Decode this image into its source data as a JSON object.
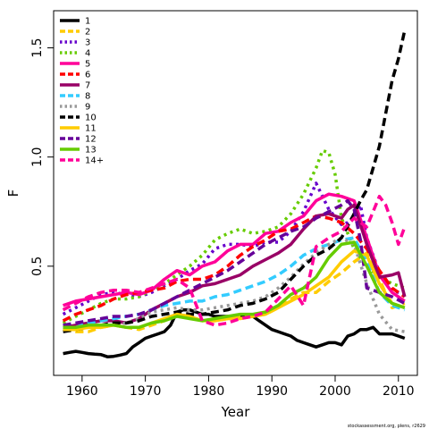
{
  "chart_data": {
    "type": "line",
    "xlabel": "Year",
    "ylabel": "F",
    "xlim": [
      1955.5,
      2013
    ],
    "ylim": [
      0.0,
      1.67
    ],
    "xticks": [
      1960,
      1970,
      1980,
      1990,
      2000,
      2010
    ],
    "yticks": [
      0.5,
      1.0,
      1.5
    ],
    "ytick_labels": [
      "0.5",
      "1.0",
      "1.5"
    ],
    "legend_position": "top-left",
    "grid": false,
    "credit": "stockassessment.org, plens, r2629",
    "series": [
      {
        "name": "1",
        "color": "#000000",
        "dash": "solid",
        "x": [
          1957,
          1958,
          1959,
          1960,
          1961,
          1962,
          1963,
          1964,
          1965,
          1966,
          1967,
          1968,
          1969,
          1970,
          1971,
          1972,
          1973,
          1974,
          1975,
          1976,
          1977,
          1978,
          1979,
          1980,
          1981,
          1982,
          1983,
          1984,
          1985,
          1986,
          1987,
          1988,
          1989,
          1990,
          1991,
          1992,
          1993,
          1994,
          1995,
          1996,
          1997,
          1998,
          1999,
          2000,
          2001,
          2002,
          2003,
          2004,
          2005,
          2006,
          2007,
          2008,
          2009,
          2010,
          2011
        ],
        "y": [
          0.1,
          0.105,
          0.11,
          0.105,
          0.1,
          0.097,
          0.095,
          0.085,
          0.087,
          0.093,
          0.1,
          0.13,
          0.15,
          0.17,
          0.18,
          0.19,
          0.2,
          0.23,
          0.29,
          0.3,
          0.3,
          0.29,
          0.28,
          0.28,
          0.27,
          0.27,
          0.27,
          0.27,
          0.27,
          0.27,
          0.27,
          0.25,
          0.23,
          0.21,
          0.2,
          0.19,
          0.18,
          0.16,
          0.15,
          0.14,
          0.13,
          0.14,
          0.15,
          0.15,
          0.14,
          0.18,
          0.19,
          0.21,
          0.21,
          0.22,
          0.19,
          0.19,
          0.19,
          0.18,
          0.17
        ]
      },
      {
        "name": "2",
        "color": "#FFCC00",
        "dash": "dashed",
        "x": [
          1957,
          1959,
          1961,
          1963,
          1965,
          1967,
          1969,
          1971,
          1973,
          1975,
          1977,
          1979,
          1981,
          1983,
          1985,
          1987,
          1989,
          1991,
          1993,
          1995,
          1997,
          1999,
          2001,
          2003,
          2005,
          2007,
          2009,
          2011
        ],
        "y": [
          0.21,
          0.2,
          0.2,
          0.22,
          0.23,
          0.22,
          0.21,
          0.23,
          0.25,
          0.28,
          0.27,
          0.25,
          0.25,
          0.26,
          0.27,
          0.27,
          0.28,
          0.31,
          0.35,
          0.38,
          0.38,
          0.43,
          0.47,
          0.52,
          0.56,
          0.44,
          0.31,
          0.33
        ]
      },
      {
        "name": "3",
        "color": "#6600CC",
        "dash": "dotted",
        "x": [
          1957,
          1959,
          1961,
          1963,
          1965,
          1967,
          1969,
          1971,
          1973,
          1975,
          1977,
          1979,
          1981,
          1983,
          1985,
          1987,
          1989,
          1991,
          1993,
          1995,
          1997,
          1999,
          2001,
          2002,
          2003,
          2004,
          2005,
          2007,
          2009,
          2011
        ],
        "y": [
          0.28,
          0.31,
          0.34,
          0.37,
          0.38,
          0.37,
          0.36,
          0.38,
          0.41,
          0.44,
          0.48,
          0.51,
          0.58,
          0.6,
          0.6,
          0.59,
          0.61,
          0.61,
          0.66,
          0.75,
          0.88,
          0.76,
          0.69,
          0.7,
          0.73,
          0.78,
          0.63,
          0.47,
          0.39,
          0.37
        ]
      },
      {
        "name": "4",
        "color": "#66CC00",
        "dash": "dotted",
        "x": [
          1957,
          1959,
          1961,
          1963,
          1965,
          1967,
          1969,
          1971,
          1973,
          1975,
          1977,
          1979,
          1981,
          1983,
          1985,
          1987,
          1989,
          1991,
          1993,
          1995,
          1997,
          1998,
          1999,
          2000,
          2001,
          2003,
          2005,
          2007,
          2009,
          2011
        ],
        "y": [
          0.24,
          0.27,
          0.3,
          0.33,
          0.35,
          0.35,
          0.36,
          0.39,
          0.42,
          0.46,
          0.5,
          0.55,
          0.62,
          0.65,
          0.67,
          0.65,
          0.66,
          0.68,
          0.74,
          0.83,
          0.95,
          1.03,
          1.02,
          0.92,
          0.72,
          0.58,
          0.5,
          0.45,
          0.42,
          0.4
        ]
      },
      {
        "name": "5",
        "color": "#FF0099",
        "dash": "solid",
        "x": [
          1957,
          1959,
          1961,
          1963,
          1965,
          1967,
          1969,
          1971,
          1973,
          1975,
          1977,
          1979,
          1981,
          1983,
          1985,
          1987,
          1989,
          1991,
          1993,
          1995,
          1997,
          1999,
          2001,
          2003,
          2005,
          2007,
          2009,
          2011
        ],
        "y": [
          0.32,
          0.34,
          0.35,
          0.36,
          0.37,
          0.38,
          0.37,
          0.39,
          0.44,
          0.48,
          0.46,
          0.5,
          0.52,
          0.57,
          0.6,
          0.6,
          0.65,
          0.66,
          0.7,
          0.73,
          0.8,
          0.83,
          0.82,
          0.8,
          0.63,
          0.46,
          0.38,
          0.34
        ]
      },
      {
        "name": "6",
        "color": "#FF0000",
        "dash": "dashed",
        "x": [
          1957,
          1959,
          1961,
          1963,
          1965,
          1967,
          1969,
          1971,
          1973,
          1975,
          1977,
          1979,
          1981,
          1983,
          1985,
          1987,
          1989,
          1991,
          1993,
          1995,
          1997,
          1999,
          2001,
          2003,
          2005,
          2007,
          2009,
          2011
        ],
        "y": [
          0.25,
          0.28,
          0.3,
          0.32,
          0.35,
          0.37,
          0.38,
          0.39,
          0.4,
          0.43,
          0.44,
          0.44,
          0.46,
          0.5,
          0.55,
          0.59,
          0.62,
          0.66,
          0.67,
          0.7,
          0.73,
          0.72,
          0.7,
          0.65,
          0.58,
          0.48,
          0.4,
          0.36
        ]
      },
      {
        "name": "7",
        "color": "#990066",
        "dash": "solid",
        "x": [
          1957,
          1959,
          1961,
          1963,
          1965,
          1967,
          1969,
          1971,
          1973,
          1975,
          1977,
          1979,
          1981,
          1983,
          1985,
          1987,
          1989,
          1991,
          1993,
          1995,
          1997,
          1999,
          2001,
          2002,
          2003,
          2005,
          2007,
          2009,
          2010,
          2011
        ],
        "y": [
          0.22,
          0.23,
          0.24,
          0.25,
          0.25,
          0.24,
          0.26,
          0.3,
          0.33,
          0.36,
          0.38,
          0.41,
          0.42,
          0.44,
          0.46,
          0.5,
          0.53,
          0.56,
          0.6,
          0.67,
          0.73,
          0.74,
          0.72,
          0.76,
          0.78,
          0.6,
          0.45,
          0.46,
          0.47,
          0.36
        ]
      },
      {
        "name": "8",
        "color": "#33CCFF",
        "dash": "dashed",
        "x": [
          1957,
          1959,
          1961,
          1963,
          1965,
          1967,
          1969,
          1971,
          1973,
          1975,
          1977,
          1979,
          1981,
          1983,
          1985,
          1987,
          1989,
          1991,
          1993,
          1995,
          1997,
          1999,
          2001,
          2003,
          2005,
          2007,
          2009,
          2011
        ],
        "y": [
          0.22,
          0.22,
          0.24,
          0.25,
          0.26,
          0.27,
          0.28,
          0.3,
          0.32,
          0.33,
          0.34,
          0.34,
          0.36,
          0.37,
          0.39,
          0.41,
          0.43,
          0.46,
          0.5,
          0.55,
          0.58,
          0.6,
          0.62,
          0.63,
          0.52,
          0.38,
          0.32,
          0.3
        ]
      },
      {
        "name": "9",
        "color": "#999999",
        "dash": "dotted",
        "x": [
          1957,
          1959,
          1961,
          1963,
          1965,
          1967,
          1969,
          1971,
          1973,
          1975,
          1977,
          1979,
          1981,
          1983,
          1985,
          1987,
          1989,
          1991,
          1993,
          1995,
          1997,
          1999,
          2001,
          2003,
          2005,
          2007,
          2009,
          2011
        ],
        "y": [
          0.21,
          0.22,
          0.22,
          0.23,
          0.23,
          0.24,
          0.26,
          0.29,
          0.3,
          0.31,
          0.3,
          0.3,
          0.31,
          0.32,
          0.33,
          0.34,
          0.36,
          0.4,
          0.45,
          0.51,
          0.56,
          0.6,
          0.63,
          0.6,
          0.42,
          0.28,
          0.21,
          0.2
        ]
      },
      {
        "name": "10",
        "color": "#000000",
        "dash": "dashed",
        "x": [
          1957,
          1959,
          1961,
          1963,
          1965,
          1967,
          1969,
          1971,
          1973,
          1975,
          1977,
          1979,
          1981,
          1983,
          1985,
          1987,
          1989,
          1991,
          1993,
          1995,
          1997,
          1999,
          2001,
          2003,
          2004,
          2005,
          2006,
          2007,
          2008,
          2009,
          2010,
          2011
        ],
        "y": [
          0.2,
          0.21,
          0.22,
          0.23,
          0.24,
          0.24,
          0.25,
          0.27,
          0.28,
          0.29,
          0.28,
          0.28,
          0.29,
          0.3,
          0.32,
          0.33,
          0.35,
          0.38,
          0.44,
          0.5,
          0.55,
          0.58,
          0.63,
          0.74,
          0.8,
          0.85,
          0.95,
          1.05,
          1.2,
          1.35,
          1.45,
          1.58
        ]
      },
      {
        "name": "11",
        "color": "#FFCC00",
        "dash": "solid",
        "x": [
          1957,
          1959,
          1961,
          1963,
          1965,
          1967,
          1969,
          1971,
          1973,
          1975,
          1977,
          1979,
          1981,
          1983,
          1985,
          1987,
          1989,
          1991,
          1993,
          1995,
          1997,
          1999,
          2001,
          2003,
          2005,
          2007,
          2009,
          2011
        ],
        "y": [
          0.21,
          0.21,
          0.22,
          0.22,
          0.23,
          0.22,
          0.22,
          0.24,
          0.26,
          0.28,
          0.27,
          0.25,
          0.25,
          0.26,
          0.26,
          0.27,
          0.28,
          0.31,
          0.34,
          0.37,
          0.41,
          0.45,
          0.52,
          0.57,
          0.55,
          0.42,
          0.33,
          0.31
        ]
      },
      {
        "name": "12",
        "color": "#660099",
        "dash": "dashed",
        "x": [
          1957,
          1959,
          1961,
          1963,
          1965,
          1967,
          1969,
          1971,
          1973,
          1975,
          1977,
          1979,
          1981,
          1983,
          1985,
          1987,
          1989,
          1991,
          1993,
          1995,
          1997,
          1999,
          2001,
          2002,
          2003,
          2004,
          2005,
          2007,
          2009,
          2011
        ],
        "y": [
          0.23,
          0.24,
          0.25,
          0.26,
          0.27,
          0.27,
          0.28,
          0.3,
          0.33,
          0.36,
          0.39,
          0.42,
          0.45,
          0.48,
          0.52,
          0.56,
          0.6,
          0.63,
          0.66,
          0.68,
          0.72,
          0.75,
          0.78,
          0.8,
          0.76,
          0.62,
          0.4,
          0.38,
          0.36,
          0.33
        ]
      },
      {
        "name": "13",
        "color": "#66CC00",
        "dash": "solid",
        "x": [
          1957,
          1959,
          1961,
          1963,
          1965,
          1967,
          1969,
          1971,
          1973,
          1975,
          1977,
          1979,
          1981,
          1983,
          1985,
          1987,
          1989,
          1991,
          1993,
          1995,
          1997,
          1999,
          2001,
          2003,
          2005,
          2007,
          2009,
          2011
        ],
        "y": [
          0.22,
          0.22,
          0.23,
          0.23,
          0.23,
          0.22,
          0.22,
          0.24,
          0.25,
          0.27,
          0.26,
          0.25,
          0.26,
          0.27,
          0.28,
          0.28,
          0.29,
          0.32,
          0.37,
          0.4,
          0.45,
          0.54,
          0.6,
          0.61,
          0.5,
          0.38,
          0.33,
          0.31
        ]
      },
      {
        "name": "14+",
        "color": "#FF0099",
        "dash": "dashed",
        "x": [
          1957,
          1959,
          1961,
          1963,
          1965,
          1967,
          1969,
          1971,
          1973,
          1975,
          1977,
          1979,
          1981,
          1983,
          1985,
          1987,
          1989,
          1991,
          1993,
          1995,
          1997,
          1999,
          2001,
          2003,
          2005,
          2007,
          2008,
          2009,
          2010,
          2011
        ],
        "y": [
          0.3,
          0.33,
          0.36,
          0.38,
          0.39,
          0.39,
          0.38,
          0.4,
          0.42,
          0.44,
          0.4,
          0.25,
          0.23,
          0.24,
          0.26,
          0.27,
          0.29,
          0.35,
          0.41,
          0.32,
          0.59,
          0.63,
          0.66,
          0.72,
          0.68,
          0.82,
          0.78,
          0.7,
          0.6,
          0.68
        ]
      }
    ]
  }
}
